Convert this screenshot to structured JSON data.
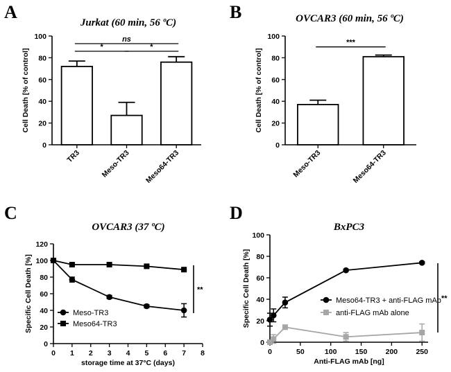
{
  "panels": {
    "a": "A",
    "b": "B",
    "c": "C",
    "d": "D"
  },
  "chart_data": [
    {
      "id": "A",
      "type": "bar",
      "title": "Jurkat (60 min, 56 ºC)",
      "ylabel": "Cell Death [% of control]",
      "xlabel": "",
      "ylim": [
        0,
        100
      ],
      "yticks": [
        0,
        20,
        40,
        60,
        80,
        100
      ],
      "categories": [
        "TR3",
        "Meso-TR3",
        "Meso64-TR3"
      ],
      "values": [
        72,
        27,
        76
      ],
      "errors": [
        5,
        12,
        5
      ],
      "significance": [
        {
          "from": 0,
          "to": 2,
          "label": "ns",
          "y": 93
        },
        {
          "from": 0,
          "to": 1,
          "label": "*",
          "y": 86
        },
        {
          "from": 1,
          "to": 2,
          "label": "*",
          "y": 86
        }
      ]
    },
    {
      "id": "B",
      "type": "bar",
      "title": "OVCAR3 (60 min, 56 ºC)",
      "ylabel": "Cell Death [% of control]",
      "xlabel": "",
      "ylim": [
        0,
        100
      ],
      "yticks": [
        0,
        20,
        40,
        60,
        80,
        100
      ],
      "categories": [
        "Meso-TR3",
        "Meso64-TR3"
      ],
      "values": [
        37,
        81
      ],
      "errors": [
        4,
        1.5
      ],
      "significance": [
        {
          "from": 0,
          "to": 1,
          "label": "***",
          "y": 90
        }
      ]
    },
    {
      "id": "C",
      "type": "line",
      "title": "OVCAR3 (37 ºC)",
      "ylabel": "Specific Cell Death [%]",
      "xlabel": "storage time at 37°C  (days)",
      "xlim": [
        0,
        8
      ],
      "ylim": [
        0,
        120
      ],
      "xticks": [
        0,
        1,
        2,
        3,
        4,
        5,
        6,
        7,
        8
      ],
      "yticks": [
        0,
        20,
        40,
        60,
        80,
        100,
        120
      ],
      "series": [
        {
          "name": "Meso-TR3",
          "marker": "circle",
          "x": [
            0,
            1,
            3,
            5,
            7
          ],
          "values": [
            100,
            77,
            56,
            45,
            40
          ],
          "errors": [
            0,
            3,
            2,
            2,
            8
          ]
        },
        {
          "name": "Meso64-TR3",
          "marker": "square",
          "x": [
            0,
            1,
            3,
            5,
            7
          ],
          "values": [
            100,
            95,
            95,
            93,
            89
          ],
          "errors": [
            0,
            1,
            1,
            1,
            1
          ]
        }
      ],
      "significance_label": "**"
    },
    {
      "id": "D",
      "type": "line",
      "title": "BxPC3",
      "ylabel": "Specific Cell Death [%]",
      "xlabel": "Anti-FLAG mAb [ng]",
      "xlim": [
        0,
        260
      ],
      "ylim": [
        0,
        100
      ],
      "xticks": [
        0,
        50,
        100,
        150,
        200,
        250
      ],
      "yticks": [
        0,
        20,
        40,
        60,
        80,
        100
      ],
      "series": [
        {
          "name": "Meso64-TR3 + anti-FLAG mAb",
          "color": "#000000",
          "marker": "circle",
          "x": [
            0,
            6,
            25,
            125,
            250
          ],
          "values": [
            21,
            25,
            37,
            67,
            74
          ],
          "errors": [
            6,
            6,
            5,
            1,
            1
          ]
        },
        {
          "name": "anti-FLAG mAb alone",
          "color": "#a6a6a6",
          "marker": "square",
          "x": [
            0,
            6,
            25,
            125,
            250
          ],
          "values": [
            0,
            3,
            14,
            5,
            9
          ],
          "errors": [
            0,
            4,
            2,
            4,
            8
          ]
        }
      ],
      "significance_label": "**"
    }
  ]
}
